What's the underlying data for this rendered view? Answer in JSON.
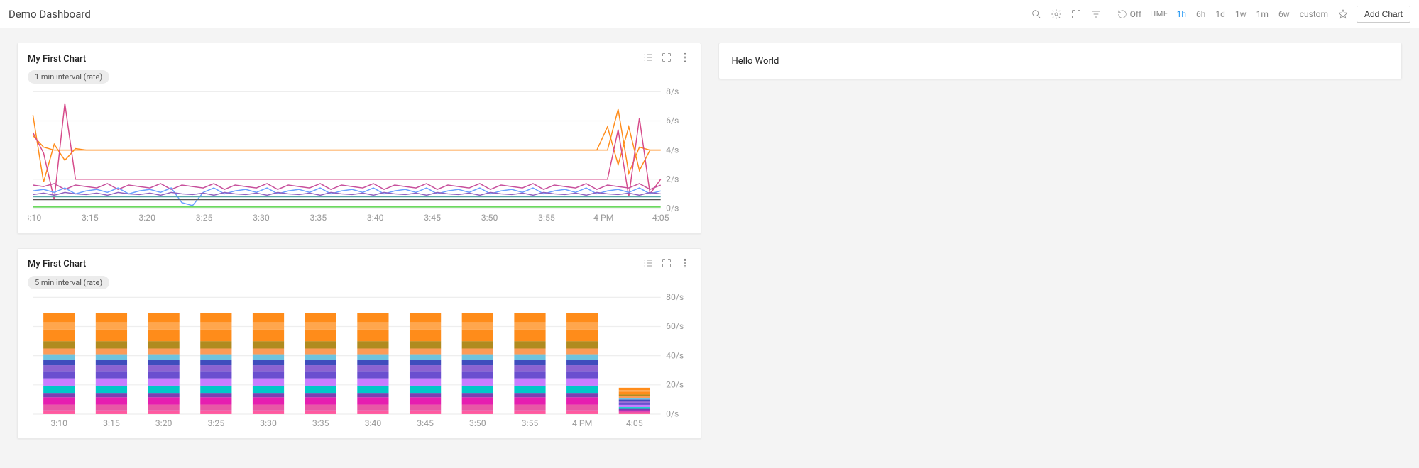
{
  "header": {
    "title": "Demo Dashboard",
    "refresh_label": "Off",
    "time_label": "TIME",
    "ranges": [
      "1h",
      "6h",
      "1d",
      "1w",
      "1m",
      "6w",
      "custom"
    ],
    "active_range": "1h",
    "add_chart_label": "Add Chart"
  },
  "text_panel": {
    "content": "Hello World"
  },
  "x_axis": {
    "labels": [
      "3:10",
      "3:15",
      "3:20",
      "3:25",
      "3:30",
      "3:35",
      "3:40",
      "3:45",
      "3:50",
      "3:55",
      "4 PM",
      "4:05"
    ]
  },
  "line_chart": {
    "title": "My First Chart",
    "chip": "1 min interval (rate)",
    "type": "line",
    "ymin": 0,
    "ymax": 8,
    "ytick_step": 2,
    "ytick_suffix": "/s",
    "background_color": "#ffffff",
    "grid_color": "#eeeeee",
    "axis_text_color": "#999999",
    "line_width": 1.2,
    "series": [
      {
        "color": "#ff8c1a",
        "values": [
          5.0,
          4.2,
          4.0,
          4.0,
          4.0,
          4.0,
          4.0,
          4.0,
          4.0,
          4.0,
          4.0,
          4.0,
          4.0,
          4.0,
          4.0,
          4.0,
          4.0,
          4.0,
          4.0,
          4.0,
          4.0,
          4.0,
          4.0,
          4.0,
          4.0,
          4.0,
          4.0,
          4.0,
          4.0,
          4.0,
          4.0,
          4.0,
          4.0,
          4.0,
          4.0,
          4.0,
          4.0,
          4.0,
          4.0,
          4.0,
          4.0,
          4.0,
          4.0,
          4.0,
          4.0,
          4.0,
          4.0,
          4.0,
          4.0,
          4.0,
          4.0,
          4.0,
          4.0,
          4.0,
          4.0,
          6.8,
          2.4,
          4.2,
          4.0,
          4.0
        ]
      },
      {
        "color": "#ff8c1a",
        "values": [
          6.4,
          1.8,
          4.4,
          3.3,
          4.1,
          4.0,
          4.0,
          4.0,
          4.0,
          4.0,
          4.0,
          4.0,
          4.0,
          4.0,
          4.0,
          4.0,
          4.0,
          4.0,
          4.0,
          4.0,
          4.0,
          4.0,
          4.0,
          4.0,
          4.0,
          4.0,
          4.0,
          4.0,
          4.0,
          4.0,
          4.0,
          4.0,
          4.0,
          4.0,
          4.0,
          4.0,
          4.0,
          4.0,
          4.0,
          4.0,
          4.0,
          4.0,
          4.0,
          4.0,
          4.0,
          4.0,
          4.0,
          4.0,
          4.0,
          4.0,
          4.0,
          4.0,
          4.0,
          4.0,
          5.6,
          3.0,
          5.6,
          2.6,
          4.0,
          4.0
        ]
      },
      {
        "color": "#d64a8a",
        "values": [
          5.2,
          3.8,
          0.6,
          7.2,
          2.0,
          2.0,
          2.0,
          2.0,
          2.0,
          2.0,
          2.0,
          2.0,
          2.0,
          2.0,
          2.0,
          2.0,
          2.0,
          2.0,
          2.0,
          2.0,
          2.0,
          2.0,
          2.0,
          2.0,
          2.0,
          2.0,
          2.0,
          2.0,
          2.0,
          2.0,
          2.0,
          2.0,
          2.0,
          2.0,
          2.0,
          2.0,
          2.0,
          2.0,
          2.0,
          2.0,
          2.0,
          2.0,
          2.0,
          2.0,
          2.0,
          2.0,
          2.0,
          2.0,
          2.0,
          2.0,
          2.0,
          2.0,
          2.0,
          2.0,
          2.0,
          5.4,
          0.8,
          6.2,
          1.0,
          2.0
        ]
      },
      {
        "color": "#c74f9c",
        "values": [
          1.6,
          1.5,
          1.7,
          1.3,
          1.6,
          1.5,
          1.4,
          1.7,
          1.3,
          1.6,
          1.5,
          1.4,
          1.7,
          1.3,
          1.6,
          1.5,
          1.4,
          1.7,
          1.3,
          1.6,
          1.5,
          1.4,
          1.7,
          1.3,
          1.6,
          1.5,
          1.4,
          1.7,
          1.3,
          1.6,
          1.5,
          1.4,
          1.7,
          1.3,
          1.6,
          1.5,
          1.4,
          1.7,
          1.3,
          1.6,
          1.5,
          1.4,
          1.7,
          1.3,
          1.6,
          1.5,
          1.4,
          1.7,
          1.3,
          1.6,
          1.5,
          1.4,
          1.7,
          1.3,
          1.6,
          1.5,
          1.4,
          1.7,
          1.3,
          1.6
        ]
      },
      {
        "color": "#6aa0ff",
        "values": [
          1.2,
          1.3,
          1.1,
          1.4,
          1.0,
          1.2,
          1.3,
          1.1,
          1.4,
          1.0,
          1.2,
          1.3,
          1.1,
          1.4,
          0.4,
          0.2,
          1.1,
          1.4,
          1.0,
          1.2,
          1.3,
          1.1,
          1.4,
          1.0,
          1.2,
          1.3,
          1.1,
          1.4,
          1.0,
          1.2,
          1.3,
          1.1,
          1.4,
          1.0,
          1.2,
          1.3,
          1.1,
          1.4,
          1.0,
          1.2,
          1.3,
          1.1,
          1.4,
          1.0,
          1.2,
          1.3,
          1.1,
          1.4,
          1.0,
          1.2,
          1.3,
          1.1,
          1.4,
          1.0,
          1.2,
          1.3,
          1.1,
          1.4,
          1.0,
          1.2
        ]
      },
      {
        "color": "#8f5fbf",
        "values": [
          0.95,
          1.05,
          0.9,
          1.1,
          1.0,
          0.95,
          1.05,
          0.9,
          1.1,
          1.0,
          0.95,
          1.05,
          0.9,
          1.1,
          1.0,
          0.95,
          1.05,
          0.9,
          1.1,
          1.0,
          0.95,
          1.05,
          0.9,
          1.1,
          1.0,
          0.95,
          1.05,
          0.9,
          1.1,
          1.0,
          0.95,
          1.05,
          0.9,
          1.1,
          1.0,
          0.95,
          1.05,
          0.9,
          1.1,
          1.0,
          0.95,
          1.05,
          0.9,
          1.1,
          1.0,
          0.95,
          1.05,
          0.9,
          1.1,
          1.0,
          0.95,
          1.05,
          0.9,
          1.1,
          1.0,
          0.95,
          1.05,
          0.9,
          1.1,
          1.0
        ]
      },
      {
        "color": "#5aa9a9",
        "values": [
          0.8,
          0.8,
          0.8,
          0.8,
          0.8,
          0.8,
          0.8,
          0.8,
          0.8,
          0.8,
          0.8,
          0.8,
          0.8,
          0.8,
          0.8,
          0.8,
          0.8,
          0.8,
          0.8,
          0.8,
          0.8,
          0.8,
          0.8,
          0.8,
          0.8,
          0.8,
          0.8,
          0.8,
          0.8,
          0.8,
          0.8,
          0.8,
          0.8,
          0.8,
          0.8,
          0.8,
          0.8,
          0.8,
          0.8,
          0.8,
          0.8,
          0.8,
          0.8,
          0.8,
          0.8,
          0.8,
          0.8,
          0.8,
          0.8,
          0.8,
          0.8,
          0.8,
          0.8,
          0.8,
          0.8,
          0.8,
          0.8,
          0.8,
          0.8,
          0.8
        ]
      },
      {
        "color": "#555555",
        "values": [
          0.6,
          0.6,
          0.6,
          0.6,
          0.6,
          0.6,
          0.6,
          0.6,
          0.6,
          0.6,
          0.6,
          0.6,
          0.6,
          0.6,
          0.6,
          0.6,
          0.6,
          0.6,
          0.6,
          0.6,
          0.6,
          0.6,
          0.6,
          0.6,
          0.6,
          0.6,
          0.6,
          0.6,
          0.6,
          0.6,
          0.6,
          0.6,
          0.6,
          0.6,
          0.6,
          0.6,
          0.6,
          0.6,
          0.6,
          0.6,
          0.6,
          0.6,
          0.6,
          0.6,
          0.6,
          0.6,
          0.6,
          0.6,
          0.6,
          0.6,
          0.6,
          0.6,
          0.6,
          0.6,
          0.6,
          0.6,
          0.6,
          0.6,
          0.6,
          0.6
        ]
      },
      {
        "color": "#58d24a",
        "values": [
          0.1,
          0.1,
          0.1,
          0.1,
          0.1,
          0.1,
          0.1,
          0.1,
          0.1,
          0.1,
          0.1,
          0.1,
          0.1,
          0.1,
          0.1,
          0.1,
          0.1,
          0.1,
          0.1,
          0.1,
          0.1,
          0.1,
          0.1,
          0.1,
          0.1,
          0.1,
          0.1,
          0.1,
          0.1,
          0.1,
          0.1,
          0.1,
          0.1,
          0.1,
          0.1,
          0.1,
          0.1,
          0.1,
          0.1,
          0.1,
          0.1,
          0.1,
          0.1,
          0.1,
          0.1,
          0.1,
          0.1,
          0.1,
          0.1,
          0.1,
          0.1,
          0.1,
          0.1,
          0.1,
          0.1,
          0.1,
          0.1,
          0.1,
          0.1,
          0.1
        ]
      }
    ]
  },
  "bar_chart": {
    "title": "My First Chart",
    "chip": "5 min interval (rate)",
    "type": "stacked-bar",
    "ymin": 0,
    "ymax": 80,
    "ytick_step": 20,
    "ytick_suffix": "/s",
    "background_color": "#ffffff",
    "grid_color": "#eeeeee",
    "axis_text_color": "#999999",
    "bar_width_ratio": 0.6,
    "categories": [
      "3:10",
      "3:15",
      "3:20",
      "3:25",
      "3:30",
      "3:35",
      "3:40",
      "3:45",
      "3:50",
      "3:55",
      "4 PM",
      "4:05"
    ],
    "segments": [
      {
        "color": "#ff5aa0",
        "values": [
          2.5,
          2.5,
          2.5,
          2.5,
          2.5,
          2.5,
          2.5,
          2.5,
          2.5,
          2.5,
          2.5,
          0.6
        ]
      },
      {
        "color": "#e858a6",
        "values": [
          4.0,
          4.0,
          4.0,
          4.0,
          4.0,
          4.0,
          4.0,
          4.0,
          4.0,
          4.0,
          4.0,
          1.0
        ]
      },
      {
        "color": "#e61eb0",
        "values": [
          5.0,
          5.0,
          5.0,
          5.0,
          5.0,
          5.0,
          5.0,
          5.0,
          5.0,
          5.0,
          5.0,
          1.0
        ]
      },
      {
        "color": "#7b3fb3",
        "values": [
          3.0,
          3.0,
          3.0,
          3.0,
          3.0,
          3.0,
          3.0,
          3.0,
          3.0,
          3.0,
          3.0,
          1.0
        ]
      },
      {
        "color": "#00c8c8",
        "values": [
          5.0,
          5.0,
          5.0,
          5.0,
          5.0,
          5.0,
          5.0,
          5.0,
          5.0,
          5.0,
          5.0,
          1.2
        ]
      },
      {
        "color": "#c77dff",
        "values": [
          5.0,
          5.0,
          5.0,
          5.0,
          5.0,
          5.0,
          5.0,
          5.0,
          5.0,
          5.0,
          5.0,
          1.5
        ]
      },
      {
        "color": "#6a4fcf",
        "values": [
          5.0,
          5.0,
          5.0,
          5.0,
          5.0,
          5.0,
          5.0,
          5.0,
          5.0,
          5.0,
          5.0,
          1.5
        ]
      },
      {
        "color": "#8c63d1",
        "values": [
          4.0,
          4.0,
          4.0,
          4.0,
          4.0,
          4.0,
          4.0,
          4.0,
          4.0,
          4.0,
          4.0,
          1.2
        ]
      },
      {
        "color": "#3f4dbd",
        "values": [
          3.5,
          3.5,
          3.5,
          3.5,
          3.5,
          3.5,
          3.5,
          3.5,
          3.5,
          3.5,
          3.5,
          1.0
        ]
      },
      {
        "color": "#6ec3e0",
        "values": [
          4.0,
          4.0,
          4.0,
          4.0,
          4.0,
          4.0,
          4.0,
          4.0,
          4.0,
          4.0,
          4.0,
          1.2
        ]
      },
      {
        "color": "#fc9b58",
        "values": [
          4.0,
          4.0,
          4.0,
          4.0,
          4.0,
          4.0,
          4.0,
          4.0,
          4.0,
          4.0,
          4.0,
          1.0
        ]
      },
      {
        "color": "#b08b1f",
        "values": [
          5.0,
          5.0,
          5.0,
          5.0,
          5.0,
          5.0,
          5.0,
          5.0,
          5.0,
          5.0,
          5.0,
          1.2
        ]
      },
      {
        "color": "#ff8c1a",
        "values": [
          8.0,
          8.0,
          8.0,
          8.0,
          8.0,
          8.0,
          8.0,
          8.0,
          8.0,
          8.0,
          8.0,
          2.0
        ]
      },
      {
        "color": "#ffa64d",
        "values": [
          5.0,
          5.0,
          5.0,
          5.0,
          5.0,
          5.0,
          5.0,
          5.0,
          5.0,
          5.0,
          5.0,
          1.0
        ]
      },
      {
        "color": "#ff8c1a",
        "values": [
          6.0,
          6.0,
          6.0,
          6.0,
          6.0,
          6.0,
          6.0,
          6.0,
          6.0,
          6.0,
          6.0,
          1.6
        ]
      }
    ]
  }
}
